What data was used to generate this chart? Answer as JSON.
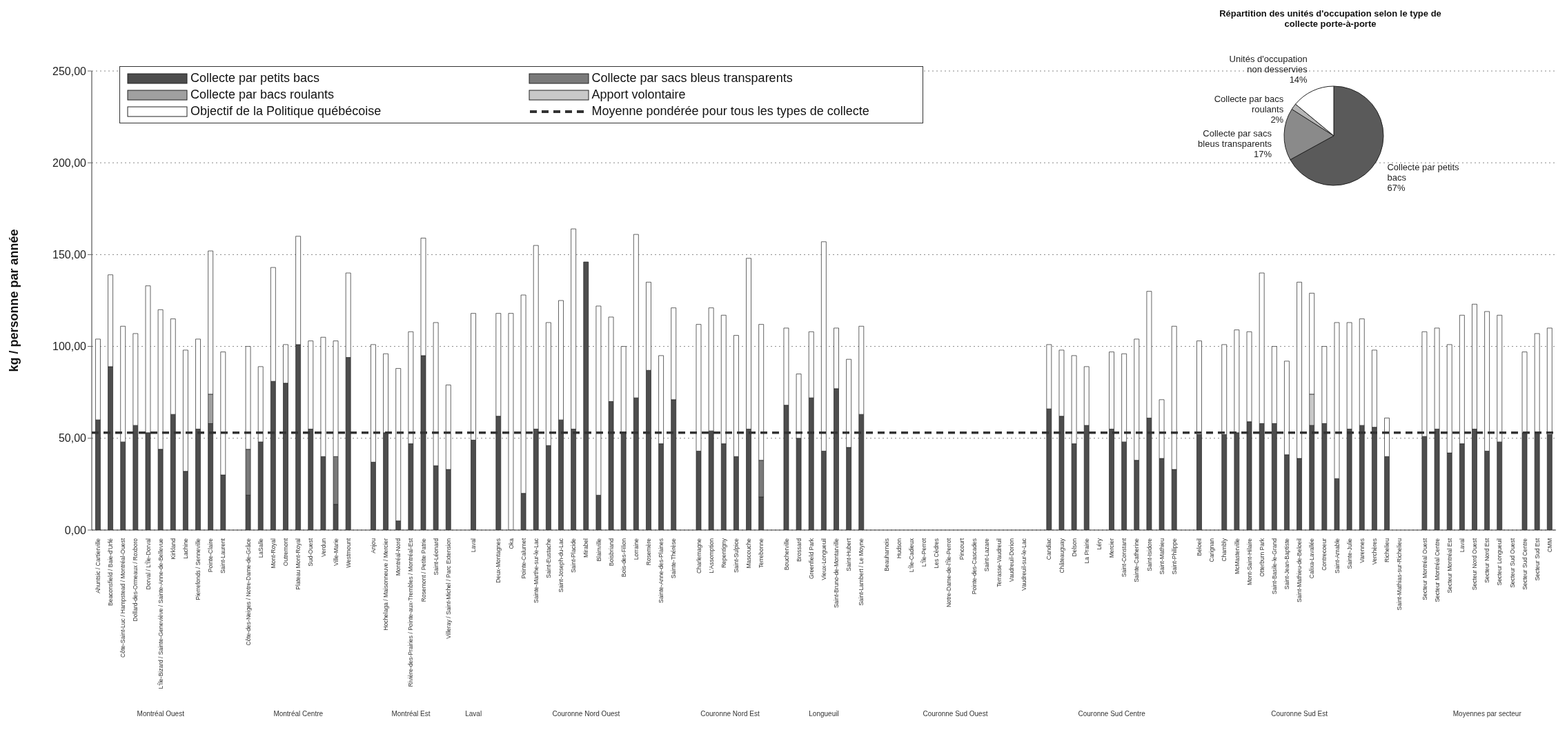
{
  "chart_data": [
    {
      "type": "bar",
      "stacked": true,
      "ylabel": "kg / personne par année",
      "categories": [
        "Ahuntsic / Cartierville",
        "Beaconsfield / Baie-d'Urfé",
        "Côte-Saint-Luc / Hampstead / Montréal-Ouest",
        "Dollard-des-Ormeaux / Roxboro",
        "Dorval / L'Île-Dorval",
        "L'Île-Bizard / Sainte-Geneviève / Sainte-Anne-de-Bellevue",
        "Kirkland",
        "Lachine",
        "Pierrefonds / Senneville",
        "Pointe-Claire",
        "Saint-Laurent",
        null,
        "Côte-des-Neiges / Notre-Dame-de-Grâce",
        "LaSalle",
        "Mont-Royal",
        "Outremont",
        "Plateau Mont-Royal",
        "Sud-Ouest",
        "Verdun",
        "Ville-Marie",
        "Westmount",
        null,
        "Anjou",
        "Hochelaga / Maisonneuve / Mercier",
        "Montréal-Nord",
        "Rivière-des-Prairies / Pointe-aux-Trembles / Montréal-Est",
        "Rosemont / Petite Patrie",
        "Saint-Léonard",
        "Villeray / Saint-Michel / Parc Extension",
        null,
        "Laval",
        null,
        "Deux-Montagnes",
        "Oka",
        "Pointe-Calumet",
        "Sainte-Marthe-sur-le-Lac",
        "Saint-Eustache",
        "Saint-Joseph-du-Lac",
        "Saint-Placide",
        "Mirabel",
        "Blainville",
        "Boisbriand",
        "Bois-des-Filion",
        "Lorraine",
        "Rosemère",
        "Sainte-Anne-des-Plaines",
        "Sainte-Thérèse",
        null,
        "Charlemagne",
        "L'Assomption",
        "Repentigny",
        "Saint-Sulpice",
        "Mascouche",
        "Terrebonne",
        null,
        "Boucherville",
        "Brossard",
        "Greenfield Park",
        "Vieux-Longueuil",
        "Saint-Bruno-de-Montarville",
        "Saint-Hubert",
        "Saint-Lambert / Le Moyne",
        null,
        "Beauharnois",
        "Hudson",
        "L'Île-Cadieux",
        "L'Île-Perrot",
        "Les Cèdres",
        "Notre-Dame-de-l'Île-Perrot",
        "Pincourt",
        "Pointe-des-Cascades",
        "Saint-Lazare",
        "Terrasse-Vaudreuil",
        "Vaudreuil-Dorion",
        "Vaudreuil-sur-le-Lac",
        null,
        "Candiac",
        "Châteauguay",
        "Delson",
        "La Prairie",
        "Léry",
        "Mercier",
        "Saint-Constant",
        "Sainte-Catherine",
        "Saint-Isidore",
        "Saint-Mathieu",
        "Saint-Philippe",
        null,
        "Beloeil",
        "Carignan",
        "Chambly",
        "McMasterville",
        "Mont-Saint-Hilaire",
        "Otterburn Park",
        "Saint-Basile-le-Grand",
        "Saint-Jean-Baptiste",
        "Saint-Mathieu-de-Beloeil",
        "Calixa-Lavallée",
        "Contrecoeur",
        "Saint-Amable",
        "Sainte-Julie",
        "Varennes",
        "Verchères",
        "Richelieu",
        "Saint-Mathias-sur-Richelieu",
        null,
        "Secteur Montréal Ouest",
        "Secteur Montréal Centre",
        "Secteur Montréal Est",
        "Laval",
        "Secteur Nord Ouest",
        "Secteur Nord Est",
        "Secteur Longueuil",
        "Secteur Sud Ouest",
        "Secteur Sud Centre",
        "Secteur Sud Est",
        "CMM"
      ],
      "series": [
        {
          "name": "Collecte par petits bacs",
          "color": "#4d4d4d",
          "values": [
            60,
            89,
            48,
            57,
            53,
            44,
            63,
            32,
            55,
            58,
            30,
            null,
            19,
            48,
            81,
            80,
            101,
            55,
            40,
            14,
            94,
            null,
            37,
            53,
            5,
            47,
            95,
            35,
            33,
            null,
            49,
            null,
            62,
            null,
            20,
            55,
            46,
            60,
            55,
            146,
            19,
            70,
            53,
            72,
            87,
            47,
            71,
            null,
            43,
            54,
            47,
            40,
            55,
            18,
            null,
            68,
            50,
            72,
            43,
            77,
            45,
            63,
            null,
            null,
            null,
            null,
            null,
            null,
            null,
            null,
            null,
            null,
            null,
            null,
            null,
            null,
            66,
            62,
            47,
            57,
            null,
            55,
            48,
            38,
            61,
            39,
            33,
            null,
            52,
            null,
            52,
            53,
            59,
            58,
            58,
            41,
            39,
            57,
            58,
            28,
            55,
            57,
            56,
            40,
            null,
            null,
            51,
            55,
            42,
            47,
            55,
            43,
            48,
            null,
            53,
            53,
            52
          ]
        },
        {
          "name": "Collecte par sacs bleus transparents",
          "color": "#7a7a7a",
          "values": [
            null,
            null,
            null,
            null,
            null,
            null,
            null,
            null,
            null,
            null,
            null,
            null,
            25,
            null,
            null,
            null,
            null,
            null,
            null,
            26,
            null,
            null,
            null,
            null,
            null,
            null,
            null,
            null,
            null,
            null,
            null,
            null,
            null,
            null,
            null,
            null,
            null,
            null,
            null,
            null,
            null,
            null,
            null,
            null,
            null,
            null,
            null,
            null,
            null,
            null,
            null,
            null,
            null,
            20,
            null,
            null,
            null,
            null,
            null,
            null,
            null,
            null,
            null,
            null,
            null,
            null,
            null,
            null,
            null,
            null,
            null,
            null,
            null,
            null,
            null,
            null,
            null,
            null,
            null,
            null,
            null,
            null,
            null,
            null,
            null,
            null,
            null,
            null,
            null,
            null,
            null,
            null,
            null,
            null,
            null,
            null,
            null,
            null,
            null,
            null,
            null,
            null,
            null,
            null,
            null,
            null,
            null,
            null,
            null,
            null,
            null,
            null,
            null,
            null,
            null,
            null,
            null
          ]
        },
        {
          "name": "Collecte par bacs roulants",
          "color": "#a0a0a0",
          "values": [
            null,
            null,
            null,
            null,
            null,
            null,
            null,
            null,
            null,
            16,
            null,
            null,
            null,
            null,
            null,
            null,
            null,
            null,
            null,
            null,
            null,
            null,
            null,
            null,
            null,
            null,
            null,
            null,
            null,
            null,
            null,
            null,
            null,
            null,
            null,
            null,
            null,
            null,
            null,
            null,
            null,
            null,
            null,
            null,
            null,
            null,
            null,
            null,
            null,
            null,
            null,
            null,
            null,
            null,
            null,
            null,
            null,
            null,
            null,
            null,
            null,
            null,
            null,
            null,
            null,
            null,
            null,
            null,
            null,
            null,
            null,
            null,
            null,
            null,
            null,
            null,
            null,
            null,
            null,
            null,
            null,
            null,
            null,
            null,
            null,
            null,
            null,
            null,
            null,
            null,
            null,
            null,
            null,
            null,
            null,
            null,
            null,
            null,
            null,
            null,
            null,
            null,
            null,
            null,
            null,
            null,
            null,
            null,
            null,
            null,
            null,
            null,
            null,
            null,
            null,
            null,
            null
          ]
        },
        {
          "name": "Apport volontaire",
          "color": "#c8c8c8",
          "values": [
            null,
            null,
            null,
            null,
            null,
            null,
            null,
            null,
            null,
            null,
            null,
            null,
            null,
            null,
            null,
            null,
            null,
            null,
            null,
            null,
            null,
            null,
            null,
            null,
            null,
            null,
            null,
            null,
            null,
            null,
            null,
            null,
            null,
            null,
            null,
            null,
            null,
            null,
            null,
            null,
            null,
            null,
            null,
            null,
            null,
            null,
            null,
            null,
            null,
            null,
            null,
            null,
            null,
            null,
            null,
            null,
            null,
            null,
            null,
            null,
            null,
            null,
            null,
            null,
            null,
            null,
            null,
            null,
            null,
            null,
            null,
            null,
            null,
            null,
            null,
            null,
            null,
            null,
            null,
            null,
            null,
            null,
            null,
            null,
            null,
            null,
            null,
            null,
            null,
            null,
            null,
            null,
            null,
            null,
            null,
            null,
            null,
            17,
            null,
            null,
            null,
            null,
            null,
            null,
            null,
            null,
            null,
            null,
            null,
            null,
            null,
            null,
            null,
            null,
            null,
            null,
            null
          ]
        },
        {
          "name": "Objectif de la Politique québécoise",
          "color": "#ffffff",
          "values": [
            44,
            50,
            63,
            50,
            80,
            76,
            52,
            66,
            49,
            78,
            67,
            null,
            56,
            41,
            62,
            21,
            59,
            48,
            65,
            63,
            46,
            null,
            64,
            43,
            83,
            61,
            64,
            78,
            46,
            null,
            69,
            null,
            56,
            118,
            108,
            100,
            67,
            65,
            109,
            null,
            103,
            46,
            47,
            89,
            48,
            48,
            50,
            null,
            69,
            67,
            70,
            66,
            93,
            74,
            null,
            42,
            35,
            36,
            114,
            33,
            48,
            48,
            null,
            null,
            null,
            null,
            null,
            null,
            null,
            null,
            null,
            null,
            null,
            null,
            null,
            null,
            35,
            36,
            48,
            32,
            null,
            42,
            48,
            66,
            69,
            32,
            78,
            null,
            51,
            null,
            49,
            56,
            49,
            82,
            42,
            51,
            96,
            55,
            42,
            85,
            58,
            58,
            42,
            21,
            null,
            null,
            57,
            55,
            59,
            70,
            68,
            76,
            69,
            null,
            44,
            54,
            58
          ]
        }
      ],
      "ref_lines": [
        {
          "axis": "y",
          "value": 53,
          "label": "Moyenne pondérée pour tous les types de collecte",
          "color": "#333333",
          "line_style": "dashed"
        }
      ],
      "ylim": [
        0,
        250
      ],
      "yticks": [
        {
          "value": 0,
          "label": "0,00"
        },
        {
          "value": 50,
          "label": "50,00"
        },
        {
          "value": 100,
          "label": "100,00"
        },
        {
          "value": 150,
          "label": "150,00"
        },
        {
          "value": 200,
          "label": "200,00"
        },
        {
          "value": 250,
          "label": "250,00"
        }
      ],
      "grid": "y",
      "legend": "top left",
      "annotations": [
        "Montréal Ouest",
        "Montréal Centre",
        "Montréal Est",
        "Laval",
        "Couronne Nord Ouest",
        "Couronne Nord Est",
        "Longueuil",
        "Couronne Sud Ouest",
        "Couronne Sud Centre",
        "Couronne Sud Est",
        "Moyennes par secteur"
      ]
    },
    {
      "type": "pie",
      "title": "Répartition des unités d'occupation selon le type de collecte porte-à-porte",
      "categories": [
        "Collecte par petits bacs",
        "Collecte par sacs bleus transparents",
        "Collecte par bacs roulants",
        "Unités d'occupation non desservies"
      ],
      "values": [
        67,
        17,
        2,
        14
      ],
      "colors": [
        "#5a5a5a",
        "#8a8a8a",
        "#b5b5b5",
        "#ffffff"
      ],
      "value_labels": [
        "67%",
        "17%",
        "2%",
        "14%"
      ]
    }
  ]
}
